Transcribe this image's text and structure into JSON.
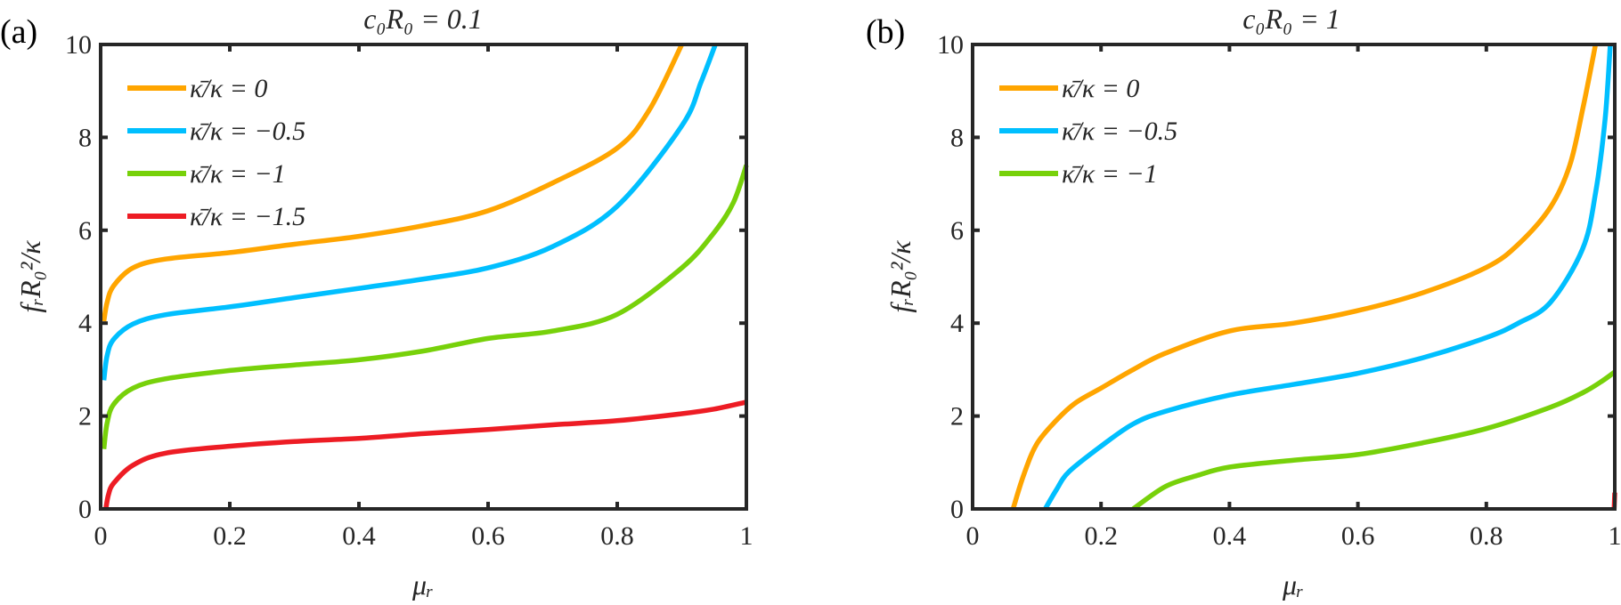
{
  "colors": {
    "orange": "#FFA500",
    "blue": "#00BFFF",
    "green": "#77D10A",
    "red": "#ED1C24",
    "axis": "#262626"
  },
  "chart_data": [
    {
      "type": "line",
      "panel_label": "(a)",
      "title": "c₀R₀ = 0.1",
      "xlabel": "μᵣ",
      "ylabel": "fᵣR₀²/κ",
      "xlim": [
        0,
        1
      ],
      "ylim": [
        0,
        10
      ],
      "xticks": [
        0,
        0.2,
        0.4,
        0.6,
        0.8,
        1
      ],
      "xtick_labels": [
        "0",
        "0.2",
        "0.4",
        "0.6",
        "0.8",
        "1"
      ],
      "yticks": [
        0,
        2,
        4,
        6,
        8,
        10
      ],
      "ytick_labels": [
        "0",
        "2",
        "4",
        "6",
        "8",
        "10"
      ],
      "grid": false,
      "legend_position": "top-left",
      "series": [
        {
          "name": "κ̄/κ = 0",
          "color_key": "orange",
          "x": [
            0.005,
            0.01,
            0.02,
            0.05,
            0.1,
            0.2,
            0.3,
            0.4,
            0.5,
            0.6,
            0.7,
            0.8,
            0.85,
            0.9
          ],
          "y": [
            4.04,
            4.45,
            4.8,
            5.19,
            5.38,
            5.52,
            5.7,
            5.87,
            6.1,
            6.42,
            7.02,
            7.77,
            8.6,
            10.0
          ]
        },
        {
          "name": "κ̄/κ = −0.5",
          "color_key": "blue",
          "x": [
            0.005,
            0.01,
            0.02,
            0.05,
            0.1,
            0.2,
            0.3,
            0.4,
            0.5,
            0.6,
            0.7,
            0.8,
            0.9,
            0.93,
            0.952
          ],
          "y": [
            2.77,
            3.3,
            3.65,
            3.98,
            4.18,
            4.35,
            4.55,
            4.75,
            4.95,
            5.19,
            5.65,
            6.52,
            8.25,
            9.2,
            10.0
          ]
        },
        {
          "name": "κ̄/κ = −1",
          "color_key": "green",
          "x": [
            0.005,
            0.01,
            0.02,
            0.05,
            0.1,
            0.2,
            0.3,
            0.4,
            0.5,
            0.6,
            0.7,
            0.8,
            0.9,
            0.95,
            0.98,
            1.0
          ],
          "y": [
            1.29,
            1.85,
            2.25,
            2.6,
            2.8,
            2.98,
            3.1,
            3.21,
            3.4,
            3.67,
            3.83,
            4.19,
            5.19,
            5.95,
            6.6,
            7.4
          ]
        },
        {
          "name": "κ̄/κ = −1.5",
          "color_key": "red",
          "x": [
            0.008,
            0.012,
            0.02,
            0.05,
            0.1,
            0.2,
            0.3,
            0.4,
            0.5,
            0.6,
            0.7,
            0.8,
            0.9,
            0.95,
            1.0
          ],
          "y": [
            0.0,
            0.3,
            0.55,
            0.94,
            1.2,
            1.35,
            1.45,
            1.52,
            1.62,
            1.71,
            1.81,
            1.9,
            2.05,
            2.15,
            2.3
          ]
        }
      ]
    },
    {
      "type": "line",
      "panel_label": "(b)",
      "title": "c₀R₀ = 1",
      "xlabel": "μᵣ",
      "ylabel": "fᵣR₀²/κ",
      "xlim": [
        0,
        1
      ],
      "ylim": [
        0,
        10
      ],
      "xticks": [
        0,
        0.2,
        0.4,
        0.6,
        0.8,
        1
      ],
      "xtick_labels": [
        "0",
        "0.2",
        "0.4",
        "0.6",
        "0.8",
        "1"
      ],
      "yticks": [
        0,
        2,
        4,
        6,
        8,
        10
      ],
      "ytick_labels": [
        "0",
        "2",
        "4",
        "6",
        "8",
        "10"
      ],
      "grid": false,
      "legend_position": "top-left",
      "series": [
        {
          "name": "κ̄/κ = 0",
          "color_key": "orange",
          "x": [
            0.063,
            0.08,
            0.1,
            0.13,
            0.16,
            0.2,
            0.25,
            0.3,
            0.4,
            0.5,
            0.6,
            0.7,
            0.8,
            0.85,
            0.9,
            0.93,
            0.95,
            0.97
          ],
          "y": [
            0.0,
            0.75,
            1.4,
            1.9,
            2.28,
            2.6,
            3.0,
            3.35,
            3.83,
            4.0,
            4.27,
            4.65,
            5.2,
            5.7,
            6.5,
            7.4,
            8.6,
            10.0
          ]
        },
        {
          "name": "κ̄/κ = −0.5",
          "color_key": "blue",
          "x": [
            0.113,
            0.13,
            0.15,
            0.2,
            0.25,
            0.3,
            0.4,
            0.5,
            0.6,
            0.7,
            0.8,
            0.85,
            0.9,
            0.95,
            0.97,
            0.985,
            0.993
          ],
          "y": [
            0.0,
            0.4,
            0.8,
            1.35,
            1.83,
            2.1,
            2.45,
            2.68,
            2.92,
            3.25,
            3.69,
            4.0,
            4.45,
            5.6,
            6.8,
            8.4,
            10.0
          ]
        },
        {
          "name": "κ̄/κ = −1",
          "color_key": "green",
          "x": [
            0.25,
            0.3,
            0.35,
            0.4,
            0.5,
            0.6,
            0.7,
            0.8,
            0.9,
            0.95,
            0.98,
            1.0
          ],
          "y": [
            0.0,
            0.48,
            0.72,
            0.9,
            1.05,
            1.17,
            1.42,
            1.73,
            2.19,
            2.5,
            2.75,
            2.95
          ]
        },
        {
          "name": "",
          "color_key": "red",
          "in_legend": false,
          "x": [
            0.999,
            1.0
          ],
          "y": [
            0.0,
            0.35
          ]
        }
      ]
    }
  ]
}
